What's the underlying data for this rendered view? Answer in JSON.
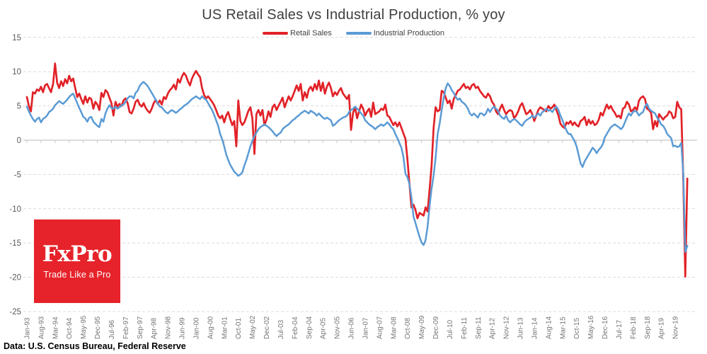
{
  "title": "US Retail Sales vs Industrial Production, % yoy",
  "legend": [
    {
      "label": "Retail Sales",
      "color": "#E12228"
    },
    {
      "label": "Industrial Production",
      "color": "#5B9BD5"
    }
  ],
  "footer": "Data: U.S. Census Bureau, Federal Reserve",
  "logo": {
    "name": "FxPro",
    "tagline": "Trade Like a Pro",
    "bg": "#E6232A"
  },
  "colors": {
    "retail_red": "#E12228",
    "industrial_blue": "#5B9BD5",
    "grid": "#DCDCDC",
    "axis": "#C6C6C6",
    "tick_label": "#757575",
    "y_label": "#595959",
    "title_text": "#3F3F3F"
  },
  "chart_data": {
    "type": "line",
    "title": "US Retail Sales vs Industrial Production, % yoy",
    "xlabel": "",
    "ylabel": "% yoy",
    "x_start": "Jan-1993",
    "x_end": "May-2020",
    "frequency": "monthly",
    "ylim": [
      -25,
      15
    ],
    "y_ticks": [
      15,
      10,
      5,
      0,
      -5,
      -10,
      -15,
      -20,
      -25
    ],
    "grid": "horizontal-dashed",
    "legend_position": "top-center",
    "x_tick_labels": [
      "Jan-93",
      "Aug-93",
      "Mar-94",
      "Oct-94",
      "May-95",
      "Dec-95",
      "Jul-96",
      "Feb-97",
      "Sep-97",
      "Apr-98",
      "Nov-98",
      "Jun-99",
      "Jan-00",
      "Aug-00",
      "Mar-01",
      "Oct-01",
      "May-02",
      "Dec-02",
      "Jul-03",
      "Feb-04",
      "Sep-04",
      "Apr-05",
      "Nov-05",
      "Jun-06",
      "Jan-07",
      "Aug-07",
      "Mar-08",
      "Oct-08",
      "May-09",
      "Dec-09",
      "Jul-10",
      "Feb-11",
      "Sep-11",
      "Apr-12",
      "Nov-12",
      "Jun-13",
      "Jan-14",
      "Aug-14",
      "Mar-15",
      "Oct-15",
      "May-16",
      "Dec-16",
      "Jul-17",
      "Feb-18",
      "Sep-18",
      "Apr-19",
      "Nov-19"
    ],
    "x_tick_step_months": 7,
    "series": [
      {
        "name": "Retail Sales",
        "color": "#E12228",
        "values": [
          6.3,
          5.0,
          4.2,
          7.0,
          6.8,
          7.4,
          7.2,
          7.8,
          7.0,
          8.0,
          8.2,
          7.6,
          7.0,
          8.2,
          11.2,
          8.4,
          7.6,
          8.6,
          7.9,
          8.9,
          8.3,
          9.4,
          8.6,
          9.0,
          7.6,
          6.3,
          6.8,
          6.0,
          5.3,
          6.4,
          5.5,
          6.2,
          6.0,
          4.6,
          5.6,
          5.2,
          4.4,
          6.9,
          6.3,
          7.3,
          7.0,
          6.2,
          5.4,
          3.6,
          5.6,
          4.9,
          5.3,
          5.0,
          5.8,
          6.1,
          5.4,
          4.1,
          3.9,
          4.6,
          5.6,
          5.9,
          5.2,
          4.9,
          5.4,
          4.7,
          4.3,
          4.0,
          4.6,
          5.4,
          5.9,
          5.3,
          5.8,
          5.2,
          6.3,
          6.0,
          6.8,
          7.3,
          7.6,
          8.1,
          7.4,
          8.9,
          8.4,
          9.3,
          9.8,
          9.4,
          8.6,
          8.0,
          9.0,
          9.6,
          10.1,
          9.6,
          9.2,
          7.6,
          6.6,
          6.1,
          6.4,
          6.0,
          5.6,
          5.1,
          4.4,
          3.6,
          3.2,
          3.6,
          2.6,
          3.6,
          4.1,
          3.1,
          2.2,
          2.8,
          -0.9,
          5.8,
          2.8,
          2.2,
          2.6,
          3.4,
          4.3,
          4.8,
          3.2,
          -2.0,
          3.8,
          4.4,
          3.6,
          4.4,
          2.2,
          3.0,
          4.2,
          3.4,
          4.8,
          5.2,
          4.4,
          5.0,
          5.6,
          6.2,
          4.8,
          5.6,
          6.4,
          5.8,
          6.4,
          7.2,
          8.0,
          7.2,
          8.2,
          5.8,
          7.0,
          6.2,
          7.4,
          7.8,
          7.2,
          8.2,
          7.4,
          8.7,
          7.2,
          8.4,
          6.8,
          7.8,
          8.4,
          7.6,
          6.4,
          7.0,
          6.6,
          7.2,
          7.6,
          6.8,
          6.4,
          6.0,
          6.6,
          1.5,
          4.0,
          4.8,
          3.2,
          4.2,
          5.2,
          4.6,
          3.6,
          4.2,
          4.6,
          3.4,
          5.5,
          3.8,
          4.0,
          4.2,
          4.6,
          4.4,
          5.2,
          3.6,
          3.4,
          2.8,
          2.2,
          2.6,
          2.0,
          2.6,
          1.8,
          1.0,
          0.2,
          -2.8,
          -6.4,
          -9.8,
          -9.4,
          -10.2,
          -11.4,
          -10.6,
          -10.8,
          -11.0,
          -9.8,
          -10.4,
          -7.2,
          -3.8,
          1.8,
          4.8,
          4.2,
          4.4,
          7.2,
          7.0,
          6.2,
          5.4,
          5.8,
          4.6,
          6.0,
          6.6,
          7.2,
          7.4,
          7.8,
          8.2,
          7.6,
          7.8,
          7.4,
          8.0,
          8.2,
          7.6,
          7.8,
          7.2,
          6.8,
          6.4,
          6.2,
          6.8,
          6.4,
          5.6,
          5.2,
          4.2,
          3.8,
          4.6,
          5.2,
          4.4,
          3.8,
          4.2,
          4.4,
          4.2,
          3.2,
          3.6,
          4.2,
          5.0,
          5.4,
          4.6,
          3.8,
          4.0,
          4.4,
          3.8,
          2.8,
          3.6,
          4.4,
          4.8,
          4.6,
          4.4,
          4.2,
          5.0,
          4.6,
          4.8,
          5.2,
          4.4,
          3.6,
          2.4,
          2.0,
          1.8,
          2.6,
          2.4,
          2.8,
          2.2,
          2.6,
          2.2,
          2.0,
          2.8,
          3.0,
          3.4,
          2.2,
          3.0,
          2.4,
          2.8,
          2.2,
          2.4,
          3.0,
          4.0,
          3.6,
          4.4,
          5.2,
          4.6,
          5.0,
          4.4,
          4.0,
          3.4,
          3.6,
          3.2,
          4.6,
          4.8,
          5.6,
          5.2,
          4.2,
          4.4,
          4.8,
          4.4,
          5.8,
          6.2,
          6.4,
          6.0,
          4.6,
          4.4,
          4.0,
          1.6,
          2.8,
          2.0,
          3.8,
          3.4,
          3.0,
          3.4,
          3.6,
          4.2,
          4.0,
          3.2,
          3.4,
          5.6,
          4.8,
          4.5,
          -5.8,
          -19.9,
          -5.6
        ]
      },
      {
        "name": "Industrial Production",
        "color": "#5B9BD5",
        "values": [
          4.9,
          4.2,
          3.6,
          3.1,
          2.7,
          3.1,
          3.3,
          2.6,
          3.1,
          3.3,
          3.6,
          4.1,
          4.3,
          4.6,
          5.1,
          5.4,
          5.7,
          5.5,
          5.3,
          5.6,
          5.9,
          6.3,
          6.6,
          6.8,
          6.1,
          5.4,
          4.7,
          4.1,
          3.4,
          3.2,
          2.7,
          3.3,
          3.4,
          2.7,
          2.4,
          2.1,
          1.9,
          3.1,
          2.7,
          3.9,
          4.6,
          5.1,
          4.7,
          4.6,
          4.9,
          4.6,
          4.8,
          5.1,
          5.2,
          5.6,
          6.1,
          6.4,
          6.4,
          6.1,
          6.9,
          7.2,
          7.9,
          8.3,
          8.5,
          8.2,
          7.9,
          7.4,
          6.9,
          6.4,
          5.9,
          5.4,
          4.9,
          4.8,
          4.4,
          4.1,
          3.9,
          4.2,
          4.4,
          4.2,
          4.0,
          4.2,
          4.5,
          4.7,
          5.0,
          5.2,
          5.4,
          5.7,
          6.0,
          6.2,
          6.4,
          6.2,
          6.0,
          6.4,
          6.1,
          5.9,
          5.4,
          4.9,
          4.4,
          3.7,
          2.9,
          2.1,
          0.9,
          0.1,
          -0.9,
          -2.1,
          -2.9,
          -3.6,
          -4.1,
          -4.6,
          -4.9,
          -5.2,
          -5.0,
          -4.7,
          -3.7,
          -2.9,
          -1.9,
          -0.9,
          -0.1,
          0.6,
          1.1,
          1.6,
          1.9,
          2.1,
          2.3,
          2.1,
          1.9,
          1.6,
          1.3,
          0.9,
          0.6,
          0.9,
          1.1,
          1.6,
          1.9,
          2.1,
          2.3,
          2.6,
          2.9,
          3.1,
          3.4,
          3.6,
          3.9,
          4.1,
          4.3,
          4.1,
          3.9,
          4.3,
          4.1,
          3.9,
          3.6,
          3.9,
          3.6,
          3.3,
          3.1,
          3.3,
          3.1,
          2.9,
          2.1,
          2.3,
          2.6,
          2.9,
          3.1,
          3.3,
          3.4,
          3.6,
          4.1,
          4.4,
          4.6,
          4.9,
          4.6,
          4.3,
          3.9,
          3.6,
          2.9,
          2.6,
          2.3,
          2.1,
          1.9,
          1.6,
          1.9,
          2.1,
          2.3,
          2.1,
          2.3,
          2.6,
          2.3,
          1.9,
          1.6,
          0.9,
          0.3,
          -0.4,
          -1.1,
          -2.4,
          -4.9,
          -5.4,
          -6.4,
          -8.4,
          -11.1,
          -12.1,
          -13.1,
          -14.1,
          -14.9,
          -15.3,
          -14.6,
          -12.6,
          -9.6,
          -7.1,
          -5.1,
          -2.6,
          0.9,
          2.4,
          4.4,
          6.1,
          7.6,
          8.3,
          7.9,
          7.3,
          6.9,
          6.3,
          5.9,
          6.1,
          5.6,
          5.4,
          5.1,
          4.6,
          3.9,
          3.6,
          3.9,
          3.6,
          3.3,
          3.9,
          3.9,
          3.6,
          3.9,
          4.6,
          4.1,
          4.6,
          4.9,
          4.6,
          4.3,
          3.6,
          3.3,
          3.1,
          3.6,
          2.9,
          2.6,
          2.9,
          3.1,
          2.9,
          2.6,
          2.3,
          2.1,
          2.6,
          2.9,
          3.1,
          3.3,
          3.6,
          3.3,
          3.6,
          3.9,
          3.6,
          4.1,
          4.3,
          4.6,
          4.3,
          4.4,
          4.1,
          4.6,
          4.9,
          4.4,
          3.6,
          2.9,
          2.1,
          1.4,
          0.9,
          0.9,
          0.4,
          -0.1,
          -0.9,
          -2.1,
          -3.4,
          -3.9,
          -3.1,
          -2.6,
          -2.1,
          -1.6,
          -1.1,
          -1.4,
          -1.9,
          -1.4,
          -1.1,
          -0.6,
          0.4,
          0.9,
          1.4,
          1.9,
          2.1,
          2.3,
          2.1,
          1.9,
          1.6,
          1.9,
          2.6,
          3.3,
          3.9,
          3.6,
          4.1,
          4.3,
          4.1,
          3.6,
          3.9,
          4.1,
          4.9,
          5.3,
          4.6,
          4.3,
          4.1,
          3.9,
          3.3,
          2.9,
          2.3,
          2.1,
          1.6,
          0.9,
          0.6,
          0.3,
          -0.9,
          -0.8,
          -1.0,
          -0.9,
          -0.4,
          -4.9,
          -16.3,
          -15.4
        ]
      }
    ]
  }
}
